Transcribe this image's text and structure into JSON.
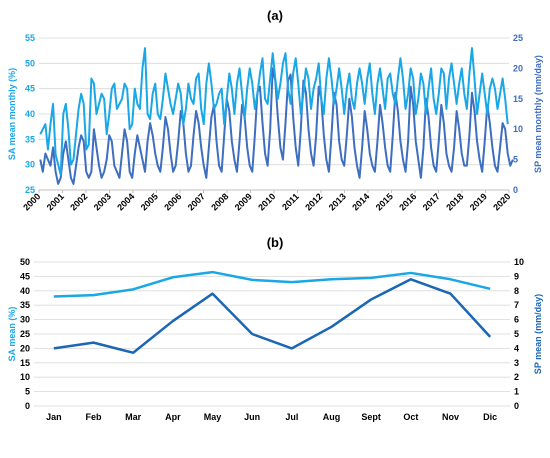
{
  "chart_data": [
    {
      "panel_label": "(a)",
      "type": "line",
      "ylabel_left": "SA mean monthly (%)",
      "ylabel_right": "SP mean monthly  (mm/day)",
      "ylim_left": [
        25,
        55
      ],
      "ylim_right": [
        0,
        25
      ],
      "left_ticks": [
        "25",
        "30",
        "35",
        "40",
        "45",
        "50",
        "55"
      ],
      "right_ticks": [
        "0",
        "5",
        "10",
        "15",
        "20",
        "25"
      ],
      "x_tick_labels": [
        "2000",
        "2001",
        "2002",
        "2003",
        "2004",
        "2005",
        "2006",
        "2007",
        "2008",
        "2009",
        "2010",
        "2011",
        "2012",
        "2013",
        "2014",
        "2015",
        "2016",
        "2017",
        "2018",
        "2019",
        "2020"
      ],
      "x_start": 2000,
      "x_end": 2020,
      "series": [
        {
          "name": "SA",
          "axis": "left",
          "color": "#1aa7e6",
          "values": [
            36,
            37,
            38,
            33,
            38,
            42,
            32,
            30,
            28,
            40,
            42,
            37,
            30,
            31,
            36,
            41,
            44,
            42,
            33,
            34,
            47,
            46,
            40,
            42,
            44,
            43,
            36,
            40,
            45,
            46,
            41,
            42,
            43,
            46,
            45,
            37,
            38,
            45,
            42,
            41,
            49,
            53,
            40,
            39,
            44,
            46,
            40,
            39,
            43,
            48,
            45,
            42,
            40,
            43,
            46,
            44,
            38,
            41,
            46,
            43,
            42,
            47,
            48,
            41,
            38,
            46,
            50,
            46,
            41,
            42,
            44,
            45,
            38,
            43,
            48,
            45,
            40,
            46,
            49,
            44,
            39,
            45,
            49,
            46,
            41,
            44,
            48,
            51,
            43,
            42,
            47,
            52,
            47,
            43,
            46,
            50,
            52,
            45,
            42,
            48,
            51,
            46,
            40,
            44,
            49,
            47,
            41,
            45,
            47,
            50,
            43,
            40,
            47,
            51,
            47,
            42,
            45,
            49,
            45,
            40,
            45,
            48,
            43,
            41,
            46,
            49,
            46,
            42,
            47,
            50,
            44,
            40,
            46,
            49,
            45,
            41,
            47,
            48,
            44,
            42,
            47,
            51,
            47,
            41,
            44,
            49,
            47,
            40,
            43,
            48,
            46,
            40,
            45,
            49,
            43,
            40,
            44,
            49,
            48,
            41,
            47,
            50,
            46,
            42,
            46,
            49,
            44,
            41,
            48,
            53,
            47,
            40,
            44,
            48,
            44,
            40,
            45,
            47,
            45,
            41,
            44,
            47,
            43,
            38
          ]
        },
        {
          "name": "SP",
          "axis": "right",
          "color": "#3e6ec0",
          "values": [
            5,
            3,
            6,
            5,
            4,
            7,
            3,
            1,
            2,
            6,
            8,
            5,
            2,
            1,
            4,
            7,
            9,
            8,
            3,
            2,
            3,
            10,
            7,
            4,
            2,
            3,
            5,
            9,
            8,
            4,
            3,
            2,
            6,
            10,
            8,
            3,
            2,
            6,
            9,
            7,
            5,
            3,
            8,
            11,
            9,
            6,
            4,
            3,
            7,
            12,
            10,
            6,
            3,
            4,
            8,
            13,
            11,
            6,
            3,
            4,
            9,
            13,
            11,
            7,
            4,
            2,
            7,
            12,
            14,
            8,
            4,
            3,
            9,
            15,
            13,
            8,
            5,
            3,
            8,
            14,
            12,
            7,
            4,
            3,
            9,
            16,
            17,
            11,
            6,
            4,
            10,
            20,
            18,
            12,
            7,
            5,
            11,
            18,
            19,
            12,
            7,
            4,
            10,
            18,
            16,
            10,
            6,
            4,
            9,
            17,
            15,
            9,
            5,
            3,
            9,
            16,
            14,
            8,
            5,
            4,
            9,
            15,
            12,
            7,
            4,
            2,
            7,
            13,
            10,
            6,
            4,
            3,
            8,
            14,
            11,
            7,
            4,
            3,
            9,
            16,
            13,
            8,
            5,
            3,
            8,
            17,
            14,
            8,
            5,
            2,
            7,
            15,
            12,
            7,
            4,
            3,
            8,
            14,
            11,
            6,
            4,
            3,
            7,
            13,
            10,
            6,
            4,
            4,
            9,
            16,
            13,
            8,
            5,
            3,
            8,
            14,
            11,
            7,
            4,
            3,
            7,
            11,
            10,
            6,
            4,
            5
          ]
        }
      ]
    },
    {
      "panel_label": "(b)",
      "type": "line",
      "ylabel_left": "SA mean (%)",
      "ylabel_right": "SP mean (mm/day)",
      "ylim_left": [
        0,
        50
      ],
      "ylim_right": [
        0,
        10
      ],
      "left_ticks": [
        "0",
        "5",
        "10",
        "15",
        "20",
        "25",
        "30",
        "35",
        "40",
        "45",
        "50"
      ],
      "right_ticks": [
        "0",
        "1",
        "2",
        "3",
        "4",
        "5",
        "6",
        "7",
        "8",
        "9",
        "10"
      ],
      "categories": [
        "Jan",
        "Feb",
        "Mar",
        "Apr",
        "May",
        "Jun",
        "Jul",
        "Aug",
        "Sept",
        "Oct",
        "Nov",
        "Dic"
      ],
      "series": [
        {
          "name": "SA",
          "axis": "left",
          "color": "#1aa7e6",
          "values": [
            38,
            38.5,
            40.5,
            44.7,
            46.5,
            43.8,
            43,
            44,
            44.5,
            46.2,
            44,
            40.7
          ]
        },
        {
          "name": "SP",
          "axis": "right",
          "color": "#1b66b5",
          "values": [
            4.0,
            4.4,
            3.7,
            5.9,
            7.8,
            5.0,
            4.0,
            5.5,
            7.4,
            8.8,
            7.8,
            4.8
          ]
        }
      ]
    }
  ]
}
